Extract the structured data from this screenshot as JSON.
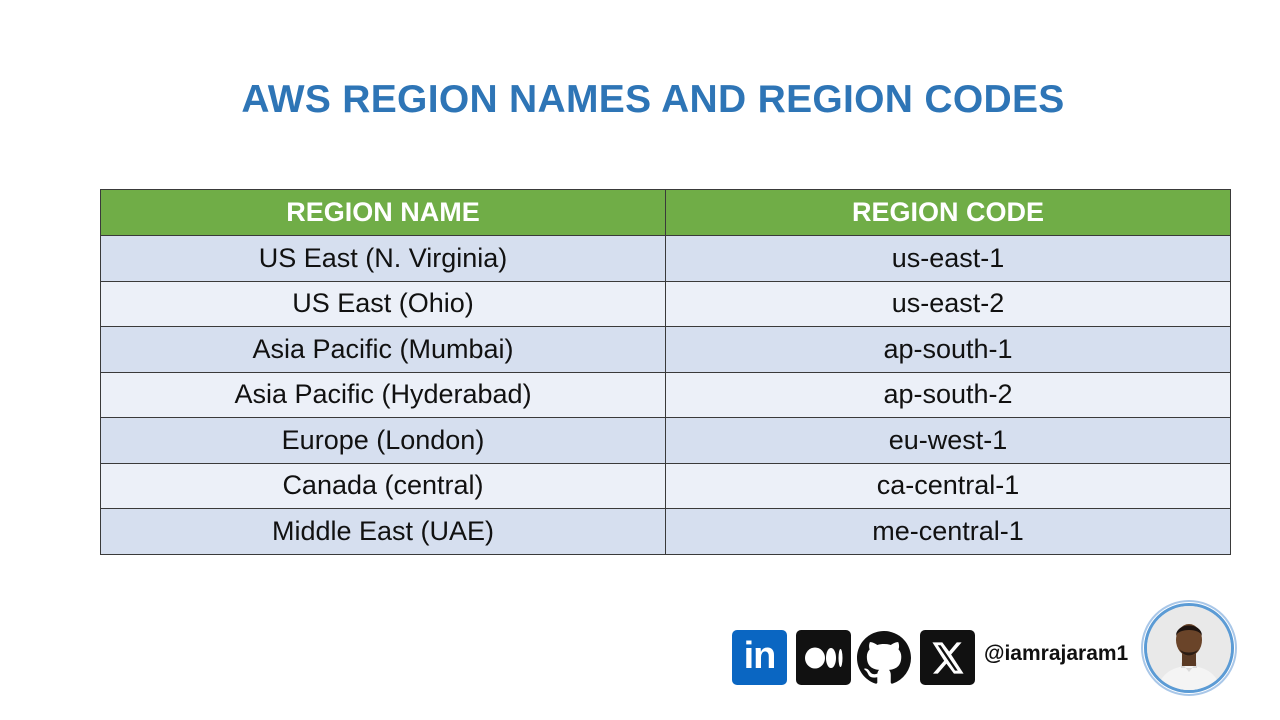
{
  "title": "AWS REGION NAMES AND REGION CODES",
  "table": {
    "headers": [
      "REGION NAME",
      "REGION CODE"
    ],
    "rows": [
      [
        "US East (N. Virginia)",
        "us-east-1"
      ],
      [
        "US East (Ohio)",
        "us-east-2"
      ],
      [
        "Asia Pacific (Mumbai)",
        "ap-south-1"
      ],
      [
        "Asia Pacific (Hyderabad)",
        "ap-south-2"
      ],
      [
        "Europe (London)",
        "eu-west-1"
      ],
      [
        "Canada (central)",
        "ca-central-1"
      ],
      [
        "Middle East (UAE)",
        "me-central-1"
      ]
    ]
  },
  "social": {
    "icons": [
      "linkedin-icon",
      "medium-icon",
      "github-icon",
      "x-icon"
    ],
    "linkedin_label": "in",
    "handle": "@iamrajaram1"
  },
  "colors": {
    "title": "#2e75b6",
    "header_bg": "#70ad47",
    "row_odd": "#d6dfef",
    "row_even": "#ecf0f8",
    "linkedin": "#0a66c2"
  }
}
